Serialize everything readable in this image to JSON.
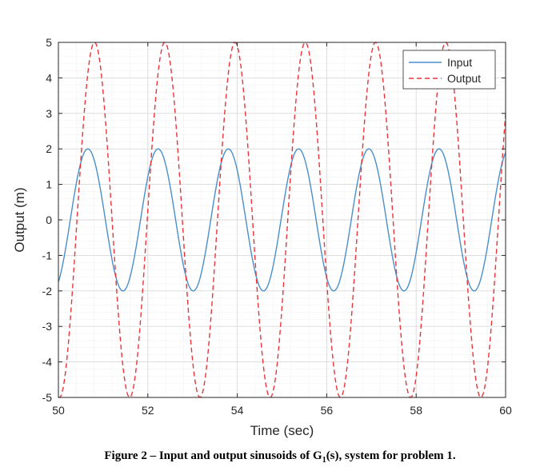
{
  "chart_data": {
    "type": "line",
    "xlabel": "Time (sec)",
    "ylabel": "Output (m)",
    "xlim": [
      50,
      60
    ],
    "ylim": [
      -5,
      5
    ],
    "xticks": [
      50,
      52,
      54,
      56,
      58,
      60
    ],
    "yticks": [
      -5,
      -4,
      -3,
      -2,
      -1,
      0,
      1,
      2,
      3,
      4,
      5
    ],
    "grid": "major and minor",
    "legend_position": "top-right",
    "series": [
      {
        "name": "Input",
        "style": "solid",
        "color": "#4a8fca",
        "amplitude": 2,
        "frequency_rad_s": 4,
        "phase_rad": 0
      },
      {
        "name": "Output",
        "style": "dashed",
        "color": "#e8343a",
        "amplitude": 5,
        "frequency_rad_s": 4,
        "phase_rad": -0.6
      }
    ]
  },
  "caption": {
    "prefix": "Figure 2 – Input and output sinusoids of G",
    "subscript": "1",
    "suffix": "(s), system for problem 1."
  }
}
